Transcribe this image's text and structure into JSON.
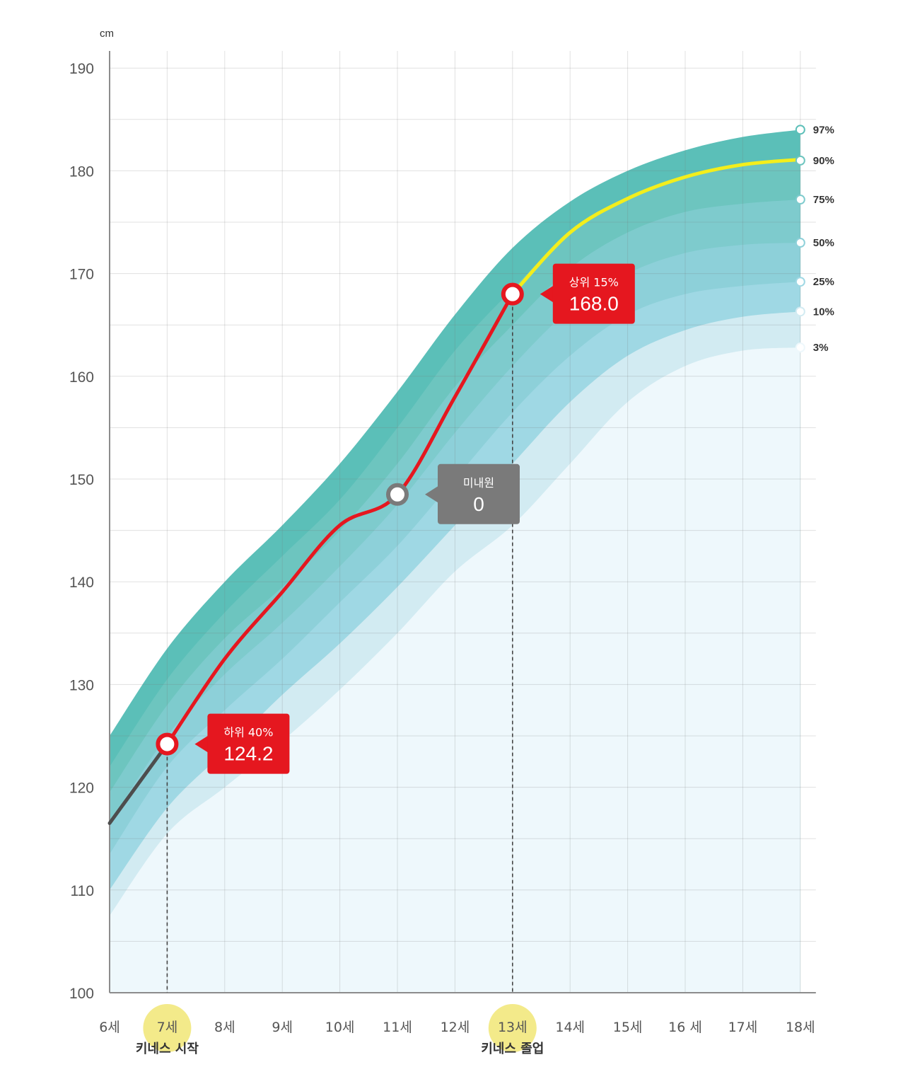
{
  "chart_data": {
    "type": "area",
    "ylabel": "cm",
    "ylim": [
      100,
      190
    ],
    "xlim": [
      6,
      18
    ],
    "grid": true,
    "y_ticks": [
      "100",
      "110",
      "120",
      "130",
      "140",
      "150",
      "160",
      "170",
      "180",
      "190"
    ],
    "x_ticks": [
      "6세",
      "7세",
      "8세",
      "9세",
      "10세",
      "11세",
      "12세",
      "13세",
      "14세",
      "15세",
      "16 세",
      "17세",
      "18세"
    ],
    "x": [
      6,
      7,
      8,
      9,
      10,
      11,
      12,
      13,
      14,
      15,
      16,
      17,
      18
    ],
    "percentile_bands": [
      {
        "name": "97%",
        "color": "#5bbfb8",
        "values": [
          125.0,
          133.5,
          140.0,
          145.5,
          151.5,
          158.5,
          166.0,
          172.5,
          177.0,
          180.0,
          182.0,
          183.3,
          184.0
        ]
      },
      {
        "name": "90%",
        "color": "#6dc5bf",
        "values": [
          122.0,
          130.5,
          137.0,
          142.5,
          148.0,
          155.0,
          162.5,
          168.5,
          174.0,
          177.5,
          179.3,
          180.5,
          181.0
        ]
      },
      {
        "name": "75%",
        "color": "#7ecbcd",
        "values": [
          119.5,
          128.0,
          134.5,
          139.5,
          145.0,
          151.5,
          159.0,
          165.0,
          170.5,
          174.0,
          176.0,
          176.8,
          177.2
        ]
      },
      {
        "name": "50%",
        "color": "#8dd0d9",
        "values": [
          116.5,
          125.0,
          131.0,
          136.0,
          141.5,
          147.5,
          154.5,
          161.0,
          166.5,
          170.0,
          172.0,
          172.8,
          173.0
        ]
      },
      {
        "name": "25%",
        "color": "#9fd8e4",
        "values": [
          113.5,
          122.0,
          127.5,
          132.5,
          138.0,
          143.5,
          150.0,
          156.5,
          162.0,
          166.0,
          168.0,
          168.8,
          169.2
        ]
      },
      {
        "name": "10%",
        "color": "#d2ebf2",
        "values": [
          110.0,
          118.0,
          123.5,
          129.0,
          134.0,
          139.5,
          145.5,
          151.5,
          157.5,
          162.0,
          164.5,
          165.8,
          166.3
        ]
      },
      {
        "name": "3%",
        "color": "#eef8fc",
        "values": [
          107.5,
          115.5,
          120.0,
          124.5,
          129.5,
          135.0,
          141.0,
          145.5,
          151.5,
          157.5,
          161.0,
          162.5,
          162.8
        ]
      }
    ],
    "series": [
      {
        "color": "#4d4d4d",
        "x": [
          6,
          7
        ],
        "values": [
          116.5,
          124.2
        ]
      },
      {
        "color": "#e5171f",
        "x": [
          7,
          8,
          9,
          10,
          11,
          12,
          13
        ],
        "values": [
          124.2,
          132.5,
          139.0,
          145.5,
          148.5,
          158.0,
          168.0
        ]
      },
      {
        "color": "#f3ee1c",
        "x": [
          13,
          14,
          15,
          16,
          17,
          18
        ],
        "values": [
          168.0,
          174.0,
          177.3,
          179.4,
          180.6,
          181.1
        ]
      }
    ],
    "markers": [
      {
        "x": 7,
        "y": 124.2,
        "style": "red",
        "label_top": "하위 40%",
        "label_value": "124.2"
      },
      {
        "x": 11,
        "y": 148.5,
        "style": "gray",
        "label_top": "미내원",
        "label_value": "0"
      },
      {
        "x": 13,
        "y": 168.0,
        "style": "red",
        "label_top": "상위 15%",
        "label_value": "168.0"
      }
    ],
    "milestones": [
      {
        "x": 7,
        "label": "키네스 시작"
      },
      {
        "x": 13,
        "label": "키네스 졸업"
      }
    ],
    "highlight_color": "#f3ea8a"
  }
}
